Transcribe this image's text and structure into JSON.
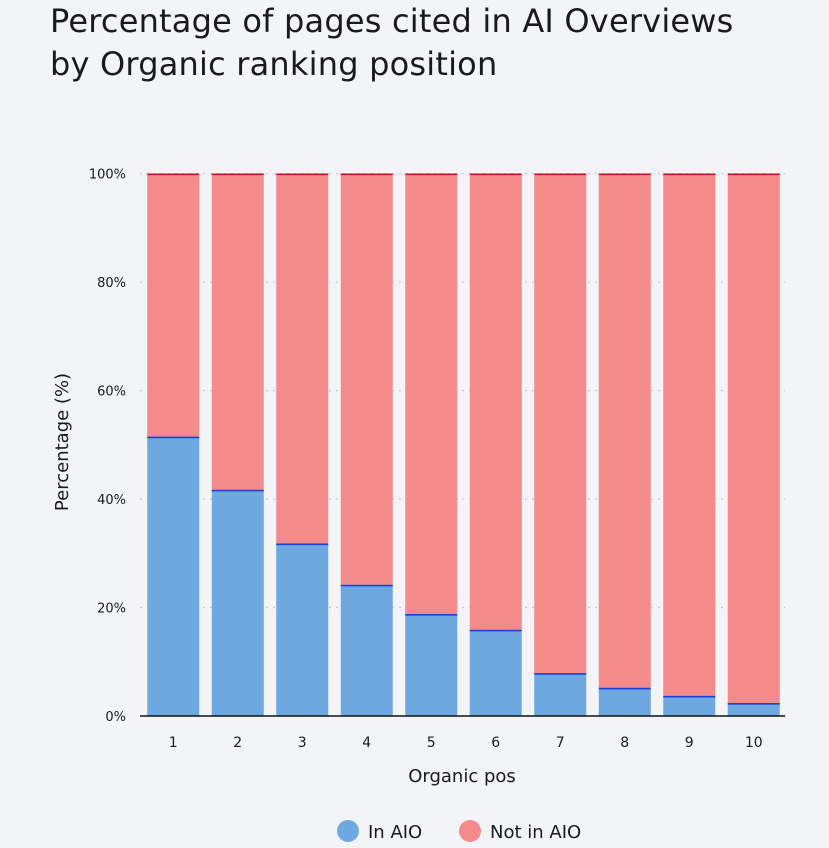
{
  "chart_data": {
    "type": "bar",
    "stacked": true,
    "title": "Percentage of pages cited in AI Overviews by Organic ranking position",
    "xlabel": "Organic pos",
    "ylabel": "Percentage (%)",
    "ylim": [
      0,
      100
    ],
    "yticks": [
      "0%",
      "20%",
      "40%",
      "60%",
      "80%",
      "100%"
    ],
    "categories": [
      "1",
      "2",
      "3",
      "4",
      "5",
      "6",
      "7",
      "8",
      "9",
      "10"
    ],
    "series": [
      {
        "name": "In AIO",
        "color": "#6ea8e0",
        "values": [
          51.5,
          41.7,
          31.8,
          24.2,
          18.8,
          15.9,
          7.9,
          5.2,
          3.7,
          2.4
        ]
      },
      {
        "name": "Not in AIO",
        "color": "#f48a89",
        "values": [
          48.5,
          58.3,
          68.2,
          75.8,
          81.2,
          84.1,
          92.1,
          94.8,
          96.3,
          97.6
        ]
      }
    ],
    "grid": true,
    "legend_position": "bottom"
  }
}
